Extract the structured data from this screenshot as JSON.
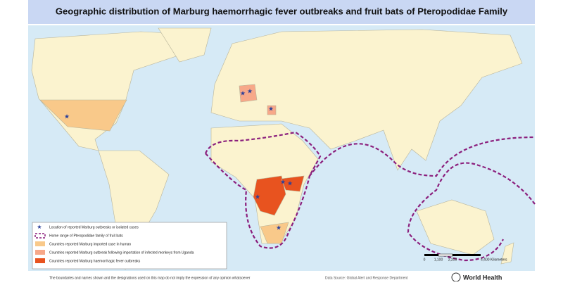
{
  "header": {
    "title": "Geographic distribution of Marburg haemorrhagic fever outbreaks and fruit bats of Pteropodidae Family"
  },
  "legend": {
    "items": [
      "Location of reported Marburg outbreaks or isolated cases",
      "Home range of Pteropodidae family of fruit bats",
      "Countries reported Marburg imported case in human",
      "Countries reported Marburg outbreak following importation of infected monkeys from Uganda",
      "Countries reported Marburg haemorrhagic fever outbreaks"
    ]
  },
  "scale": {
    "labels": [
      "0",
      "1,100",
      "2,200",
      "4,400 Kilometers"
    ]
  },
  "footer": {
    "disclaimer": "The boundaries and names shown and the designations used on this map do not imply the expression of any opinion whatsoever",
    "source": "Data Source: Global Alert and Response Department",
    "logo": "World Health"
  }
}
